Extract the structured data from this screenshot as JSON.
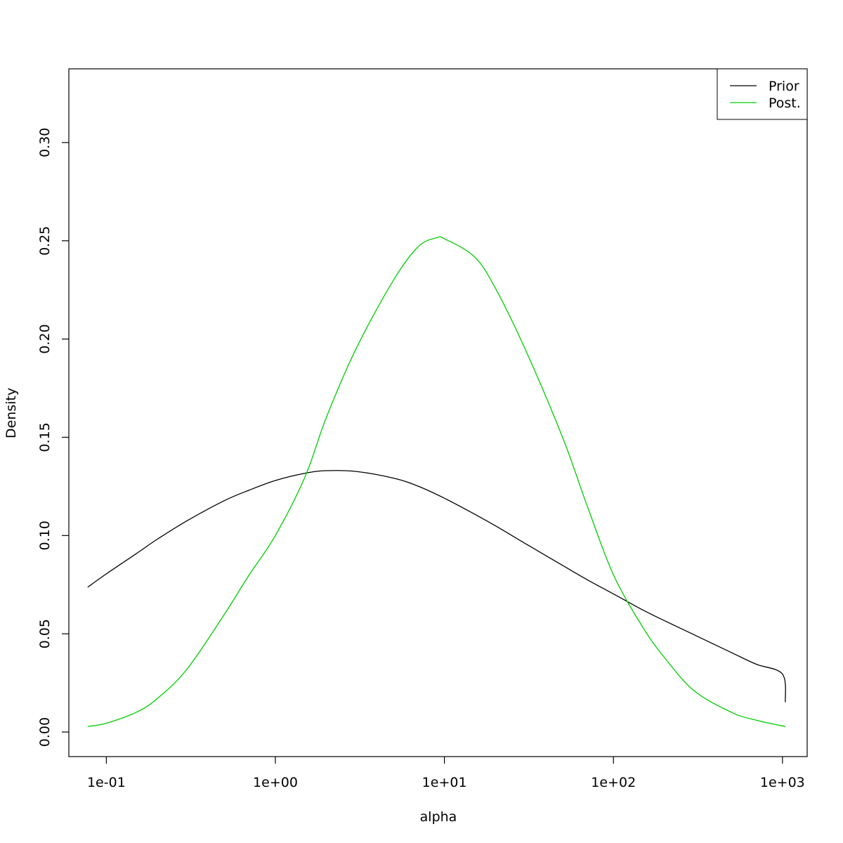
{
  "chart_data": {
    "type": "line",
    "title": "",
    "xlabel": "alpha",
    "ylabel": "Density",
    "xscale": "log10",
    "xlim": [
      0.06,
      1400
    ],
    "ylim": [
      -0.0125,
      0.3375
    ],
    "grid": false,
    "legend_position": "top-right",
    "x_ticks": [
      {
        "value": 0.1,
        "label": "1e-01"
      },
      {
        "value": 1,
        "label": "1e+00"
      },
      {
        "value": 10,
        "label": "1e+01"
      },
      {
        "value": 100,
        "label": "1e+02"
      },
      {
        "value": 1000,
        "label": "1e+03"
      }
    ],
    "y_ticks": [
      {
        "value": 0.0,
        "label": "0.00"
      },
      {
        "value": 0.05,
        "label": "0.05"
      },
      {
        "value": 0.1,
        "label": "0.10"
      },
      {
        "value": 0.15,
        "label": "0.15"
      },
      {
        "value": 0.2,
        "label": "0.20"
      },
      {
        "value": 0.25,
        "label": "0.25"
      },
      {
        "value": 0.3,
        "label": "0.30"
      }
    ],
    "series": [
      {
        "name": "Prior",
        "color": "#000000",
        "x": [
          0.0775,
          0.1,
          0.15,
          0.2,
          0.3,
          0.5,
          0.7,
          1.0,
          1.5,
          2.0,
          3.0,
          5.0,
          7.0,
          10.0,
          15.0,
          20.0,
          30.0,
          50.0,
          70.0,
          100.0,
          150.0,
          200.0,
          300.0,
          500.0,
          700.0,
          1000.0,
          1040.0
        ],
        "y": [
          0.0737,
          0.0805,
          0.0907,
          0.0981,
          0.1075,
          0.1178,
          0.1231,
          0.128,
          0.1317,
          0.133,
          0.1326,
          0.1292,
          0.1251,
          0.119,
          0.111,
          0.105,
          0.096,
          0.0848,
          0.0775,
          0.0703,
          0.062,
          0.0567,
          0.0495,
          0.0404,
          0.0345,
          0.0295,
          0.0152
        ]
      },
      {
        "name": "Post.",
        "color": "#00cd00",
        "x": [
          0.0775,
          0.1,
          0.15,
          0.2,
          0.3,
          0.5,
          0.7,
          1.0,
          1.5,
          2.0,
          3.0,
          5.0,
          7.0,
          9.0,
          10.0,
          15.0,
          20.0,
          30.0,
          50.0,
          70.0,
          100.0,
          150.0,
          200.0,
          300.0,
          500.0,
          700.0,
          1040.0
        ],
        "y": [
          0.0028,
          0.0045,
          0.01,
          0.017,
          0.032,
          0.06,
          0.08,
          0.1,
          0.13,
          0.16,
          0.195,
          0.23,
          0.247,
          0.2515,
          0.251,
          0.242,
          0.226,
          0.195,
          0.15,
          0.115,
          0.08,
          0.053,
          0.038,
          0.021,
          0.01,
          0.006,
          0.0028
        ]
      }
    ]
  }
}
